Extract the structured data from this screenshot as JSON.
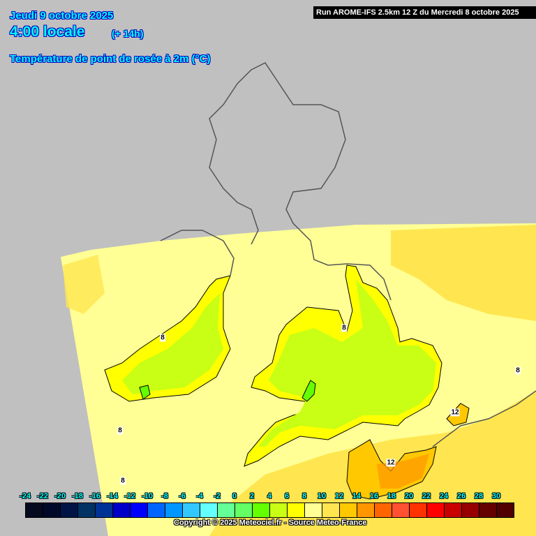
{
  "header": {
    "date": "Jeudi 9 octobre 2025",
    "time": "4:00 locale",
    "lead": "(+ 14h)",
    "parameter": "Température de point de rosée à 2m (°C)",
    "run": "Run AROME-IFS 2.5km 12 Z du Mercredi 8 octobre 2025"
  },
  "legend": {
    "ticks": [
      "-24",
      "-22",
      "-20",
      "-18",
      "-16",
      "-14",
      "-12",
      "-10",
      "-8",
      "-6",
      "-4",
      "-2",
      "0",
      "2",
      "4",
      "6",
      "8",
      "10",
      "12",
      "14",
      "16",
      "18",
      "20",
      "22",
      "24",
      "26",
      "28",
      "30"
    ],
    "colors": [
      "#050a1e",
      "#000a28",
      "#001446",
      "#003264",
      "#003296",
      "#0000c8",
      "#0000ff",
      "#0064ff",
      "#0096ff",
      "#32c8ff",
      "#64ffff",
      "#64ff96",
      "#64ff64",
      "#64ff00",
      "#c8ff14",
      "#ffff00",
      "#ffff96",
      "#ffe650",
      "#ffc800",
      "#ff9600",
      "#ff6400",
      "#ff5032",
      "#ff3200",
      "#ff0000",
      "#c80000",
      "#960000",
      "#640000",
      "#500000"
    ]
  },
  "contour_labels": [
    "8",
    "8",
    "8",
    "8",
    "8",
    "12",
    "12"
  ],
  "copyright": "Copyright © 2025 Meteociel.fr - Source Meteo-France"
}
